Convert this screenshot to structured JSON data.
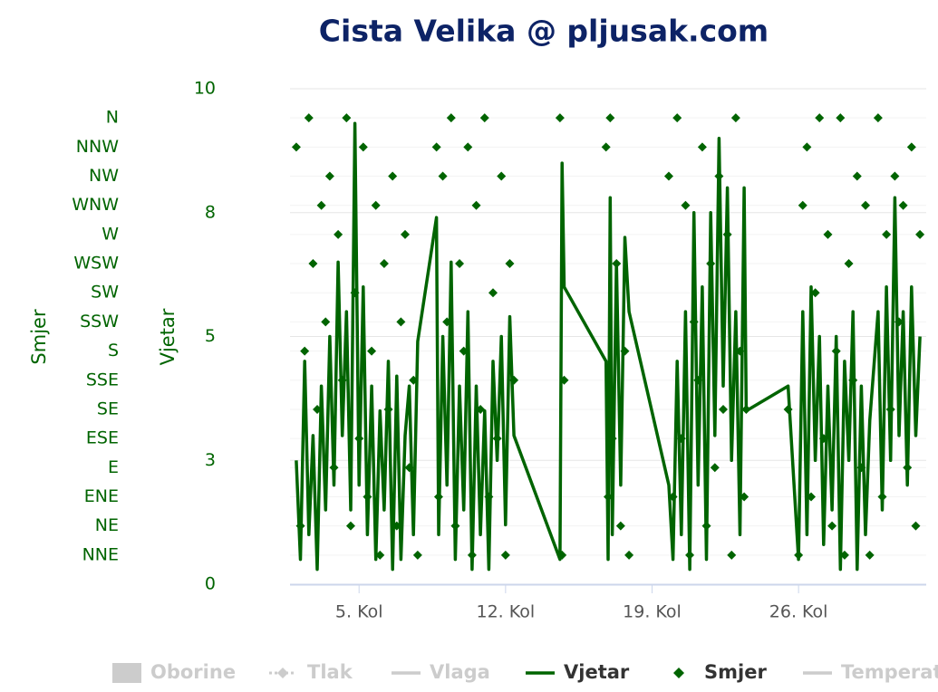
{
  "chart_data": {
    "type": "line",
    "title": "Cista Velika @ pljusak.com",
    "xlim": [
      1.7,
      32.1
    ],
    "xticks": [
      {
        "value": 5,
        "label": "5. Kol"
      },
      {
        "value": 12,
        "label": "12. Kol"
      },
      {
        "value": 19,
        "label": "19. Kol"
      },
      {
        "value": 26,
        "label": "26. Kol"
      }
    ],
    "ylabel": "Vjetar",
    "ylim": [
      0,
      10
    ],
    "yticks": [
      0,
      {
        "value": 2.5,
        "label": "3"
      },
      5,
      {
        "value": 7.5,
        "label": "8"
      },
      10
    ],
    "y2label": "Smjer",
    "y2lim": [
      0,
      382.5
    ],
    "y2ticks": [
      {
        "value": 22.5,
        "label": "NNE"
      },
      {
        "value": 45,
        "label": "NE"
      },
      {
        "value": 67.5,
        "label": "ENE"
      },
      {
        "value": 90,
        "label": "E"
      },
      {
        "value": 112.5,
        "label": "ESE"
      },
      {
        "value": 135,
        "label": "SE"
      },
      {
        "value": 157.5,
        "label": "SSE"
      },
      {
        "value": 180,
        "label": "S"
      },
      {
        "value": 202.5,
        "label": "SSW"
      },
      {
        "value": 225,
        "label": "SW"
      },
      {
        "value": 247.5,
        "label": "WSW"
      },
      {
        "value": 270,
        "label": "W"
      },
      {
        "value": 292.5,
        "label": "WNW"
      },
      {
        "value": 315,
        "label": "NW"
      },
      {
        "value": 337.5,
        "label": "NNW"
      },
      {
        "value": 360,
        "label": "N"
      }
    ],
    "grid": true,
    "legend": "bottom",
    "x": [
      2,
      2.2,
      2.4,
      2.6,
      2.8,
      3,
      3.2,
      3.4,
      3.6,
      3.8,
      4,
      4.2,
      4.4,
      4.6,
      4.8,
      5,
      5.2,
      5.4,
      5.6,
      5.8,
      6,
      6.2,
      6.4,
      6.6,
      6.8,
      7,
      7.2,
      7.4,
      7.6,
      7.8,
      8.7,
      8.8,
      9,
      9.2,
      9.4,
      9.6,
      9.8,
      10,
      10.2,
      10.4,
      10.6,
      10.8,
      11,
      11.2,
      11.4,
      11.6,
      11.8,
      12,
      12.2,
      12.4,
      14.6,
      14.7,
      14.8,
      16.8,
      16.9,
      17,
      17.1,
      17.3,
      17.5,
      17.7,
      17.9,
      19.8,
      20,
      20.2,
      20.4,
      20.6,
      20.8,
      21,
      21.2,
      21.4,
      21.6,
      21.8,
      22,
      22.2,
      22.4,
      22.6,
      22.8,
      23,
      23.2,
      23.4,
      23.5,
      25.5,
      26,
      26.2,
      26.4,
      26.6,
      26.8,
      27,
      27.2,
      27.4,
      27.6,
      27.8,
      28,
      28.2,
      28.4,
      28.6,
      28.8,
      29,
      29.2,
      29.4,
      29.8,
      30,
      30.2,
      30.4,
      30.6,
      30.8,
      31,
      31.2,
      31.4,
      31.6,
      31.8
    ],
    "series": [
      {
        "name": "Oborine",
        "style": "column",
        "color": "#cccccc",
        "visible": false
      },
      {
        "name": "Tlak",
        "style": "dashed-diamond",
        "color": "#cccccc",
        "visible": false
      },
      {
        "name": "Vlaga",
        "style": "line",
        "color": "#cccccc",
        "visible": false
      },
      {
        "name": "Vjetar",
        "style": "line",
        "color": "#006400",
        "visible": true,
        "values": [
          2.5,
          0.5,
          4.5,
          1.0,
          3.0,
          0.3,
          4.0,
          1.5,
          5.0,
          2.0,
          6.5,
          3.0,
          5.5,
          1.5,
          9.3,
          2.0,
          6.0,
          1.0,
          4.0,
          0.5,
          3.5,
          1.5,
          4.5,
          0.3,
          4.2,
          0.5,
          3.0,
          4.0,
          1.0,
          4.9,
          7.4,
          1.0,
          5.0,
          2.0,
          6.5,
          0.5,
          4.0,
          1.5,
          5.5,
          0.3,
          4.0,
          1.0,
          3.5,
          0.3,
          4.5,
          2.5,
          5.0,
          1.2,
          5.4,
          3.0,
          0.5,
          8.5,
          6.0,
          4.5,
          0.5,
          7.8,
          1.0,
          6.5,
          2.0,
          7.0,
          5.5,
          2.0,
          0.5,
          4.5,
          1.0,
          5.5,
          0.3,
          7.5,
          2.0,
          6.0,
          0.5,
          7.5,
          3.0,
          9.0,
          4.0,
          8.0,
          2.5,
          5.5,
          1.0,
          8.0,
          3.5,
          4.0,
          0.5,
          5.5,
          1.0,
          6.0,
          2.5,
          5.0,
          0.8,
          4.0,
          1.5,
          5.0,
          0.3,
          4.5,
          2.5,
          5.5,
          0.3,
          4.0,
          1.0,
          3.3,
          5.5,
          1.5,
          6.0,
          2.5,
          7.8,
          3.0,
          5.5,
          2.0,
          6.0,
          3.0,
          5.0
        ]
      },
      {
        "name": "Smjer",
        "style": "markers",
        "axis": "y2",
        "color": "#006400",
        "visible": true,
        "values": [
          337.5,
          45,
          180,
          360,
          247.5,
          135,
          292.5,
          202.5,
          315,
          90,
          270,
          157.5,
          360,
          45,
          225,
          112.5,
          337.5,
          67.5,
          180,
          292.5,
          22.5,
          247.5,
          135,
          315,
          45,
          202.5,
          270,
          90,
          157.5,
          22.5,
          337.5,
          67.5,
          315,
          202.5,
          360,
          45,
          247.5,
          180,
          337.5,
          22.5,
          292.5,
          135,
          360,
          67.5,
          225,
          112.5,
          315,
          22.5,
          247.5,
          157.5,
          360,
          22.5,
          157.5,
          337.5,
          67.5,
          360,
          112.5,
          247.5,
          45,
          180,
          22.5,
          315,
          67.5,
          360,
          112.5,
          292.5,
          22.5,
          202.5,
          157.5,
          337.5,
          45,
          247.5,
          90,
          315,
          135,
          270,
          22.5,
          360,
          180,
          67.5,
          135,
          135,
          22.5,
          292.5,
          337.5,
          67.5,
          225,
          360,
          112.5,
          270,
          45,
          180,
          360,
          22.5,
          247.5,
          157.5,
          315,
          90,
          292.5,
          22.5,
          360,
          67.5,
          270,
          135,
          315,
          202.5,
          292.5,
          90,
          337.5,
          45,
          270
        ]
      },
      {
        "name": "Temperatura",
        "style": "line",
        "color": "#cccccc",
        "visible": false
      }
    ]
  }
}
